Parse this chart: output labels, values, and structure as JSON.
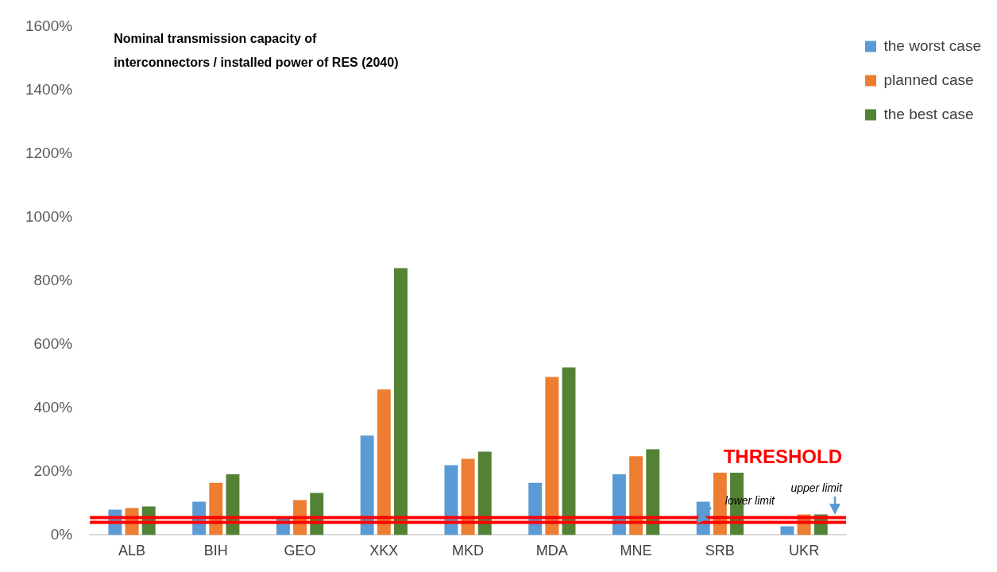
{
  "chart_data": {
    "type": "bar",
    "title": "Nominal transmission capacity of interconnectors / installed power of RES (2040)",
    "categories": [
      "ALB",
      "BIH",
      "GEO",
      "XKX",
      "MKD",
      "MDA",
      "MNE",
      "SRB",
      "UKR"
    ],
    "series": [
      {
        "name": "the worst case",
        "color": "#5b9bd5",
        "values": [
          80,
          105,
          52,
          313,
          220,
          164,
          191,
          105,
          27
        ]
      },
      {
        "name": "planned case",
        "color": "#ed7d31",
        "values": [
          85,
          164,
          110,
          458,
          240,
          497,
          248,
          196,
          65
        ]
      },
      {
        "name": "the best case",
        "color": "#548235",
        "values": [
          90,
          191,
          132,
          840,
          262,
          527,
          270,
          196,
          65
        ]
      }
    ],
    "ylim": [
      0,
      1600
    ],
    "yticks": [
      {
        "value": 0,
        "label": "0%"
      },
      {
        "value": 200,
        "label": "200%"
      },
      {
        "value": 400,
        "label": "400%"
      },
      {
        "value": 600,
        "label": "600%"
      },
      {
        "value": 800,
        "label": "800%"
      },
      {
        "value": 1000,
        "label": "1000%"
      },
      {
        "value": 1200,
        "label": "1200%"
      },
      {
        "value": 1400,
        "label": "1400%"
      },
      {
        "value": 1600,
        "label": "1600%"
      }
    ],
    "grid": false,
    "legend": "top right",
    "ref_lines": [
      {
        "axis": "y",
        "value": 40,
        "label": "lower limit",
        "color": "#ff0000"
      },
      {
        "axis": "y",
        "value": 55,
        "label": "upper limit",
        "color": "#ff0000"
      }
    ],
    "annotations": [
      "THRESHOLD"
    ]
  }
}
